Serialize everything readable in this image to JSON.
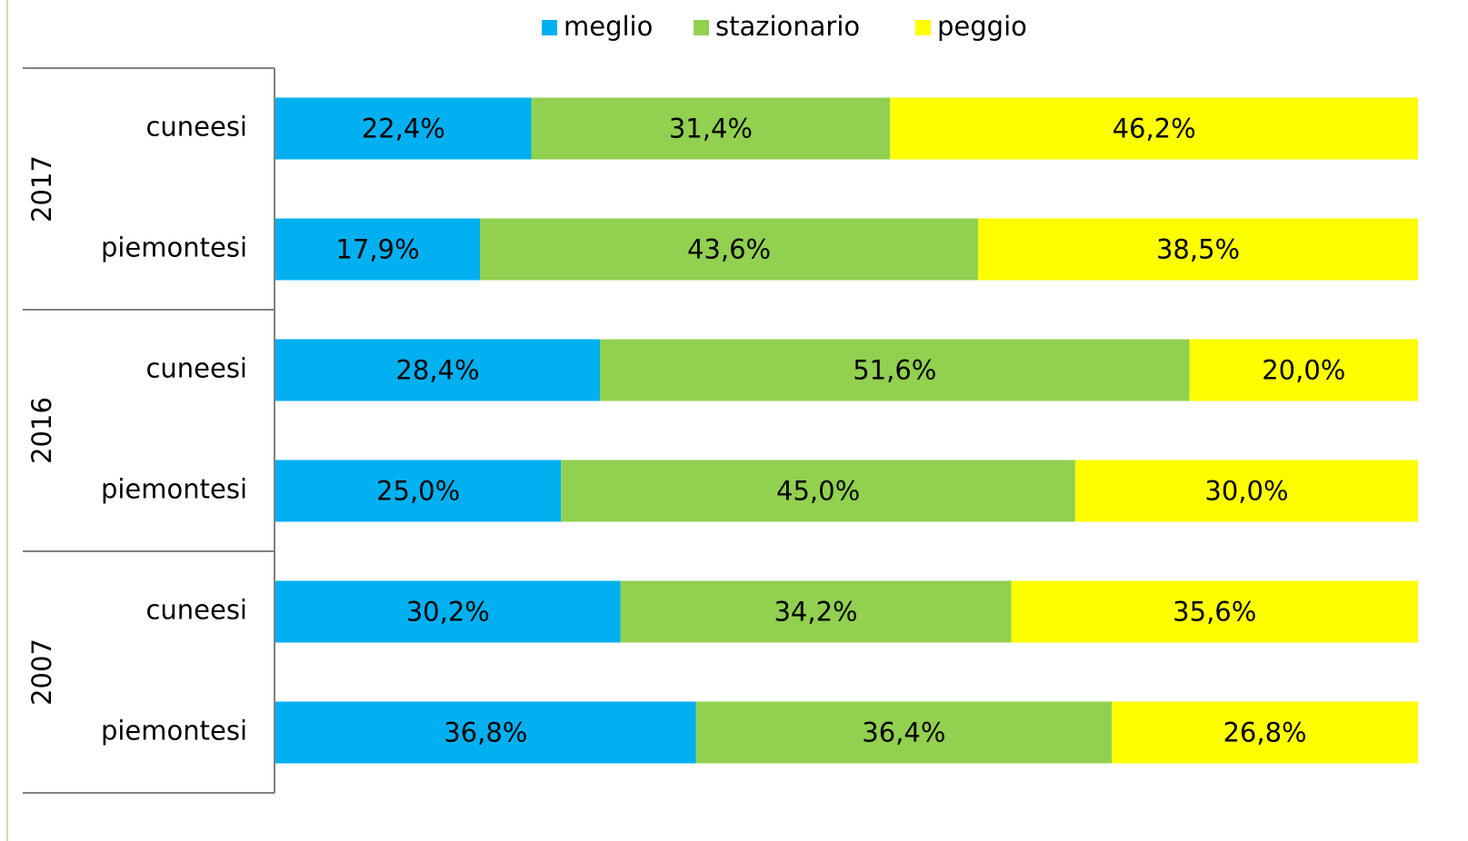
{
  "chart_data": {
    "type": "bar",
    "orientation": "horizontal",
    "stacked": true,
    "groups": [
      "2017",
      "2016",
      "2007"
    ],
    "categories": [
      "cuneesi",
      "piemontesi",
      "cuneesi",
      "piemontesi",
      "cuneesi",
      "piemontesi"
    ],
    "xlim": [
      0,
      100
    ],
    "legend": "top",
    "series": [
      {
        "name": "meglio",
        "color": "#00b0f0",
        "values": [
          22.4,
          17.9,
          28.4,
          25.0,
          30.2,
          36.8
        ],
        "value_labels": [
          "22,4%",
          "17,9%",
          "28,4%",
          "25,0%",
          "30,2%",
          "36,8%"
        ]
      },
      {
        "name": "stazionario",
        "color": "#92d050",
        "values": [
          31.4,
          43.6,
          51.6,
          45.0,
          34.2,
          36.4
        ],
        "value_labels": [
          "31,4%",
          "43,6%",
          "51,6%",
          "45,0%",
          "34,2%",
          "36,4%"
        ]
      },
      {
        "name": "peggio",
        "color": "#ffff00",
        "values": [
          46.2,
          38.5,
          20.0,
          30.0,
          35.6,
          26.8
        ],
        "value_labels": [
          "46,2%",
          "38,5%",
          "20,0%",
          "30,0%",
          "35,6%",
          "26,8%"
        ]
      }
    ]
  }
}
